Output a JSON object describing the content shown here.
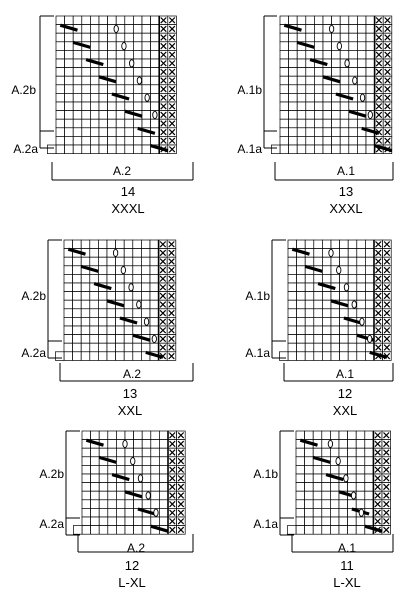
{
  "charts": [
    {
      "id": "c1",
      "chart": "A.2",
      "upper": "A.2b",
      "lower": "A.2a",
      "stitches": "14",
      "size": "XXXL",
      "rows": 16,
      "cols": 14
    },
    {
      "id": "c2",
      "chart": "A.1",
      "upper": "A.1b",
      "lower": "A.1a",
      "stitches": "13",
      "size": "XXXL",
      "rows": 16,
      "cols": 13
    },
    {
      "id": "c3",
      "chart": "A.2",
      "upper": "A.2b",
      "lower": "A.2a",
      "stitches": "13",
      "size": "XXL",
      "rows": 14,
      "cols": 13
    },
    {
      "id": "c4",
      "chart": "A.1",
      "upper": "A.1b",
      "lower": "A.1a",
      "stitches": "12",
      "size": "XXL",
      "rows": 14,
      "cols": 12
    },
    {
      "id": "c5",
      "chart": "A.2",
      "upper": "A.2b",
      "lower": "A.2a",
      "stitches": "12",
      "size": "L-XL",
      "rows": 12,
      "cols": 12
    },
    {
      "id": "c6",
      "chart": "A.1",
      "upper": "A.1b",
      "lower": "A.1a",
      "stitches": "11",
      "size": "L-XL",
      "rows": 12,
      "cols": 11
    }
  ],
  "icons": {
    "decrease": "slash-decrease-icon",
    "yarn_over": "yarn-over-icon",
    "cross": "cross-stitch-icon"
  }
}
